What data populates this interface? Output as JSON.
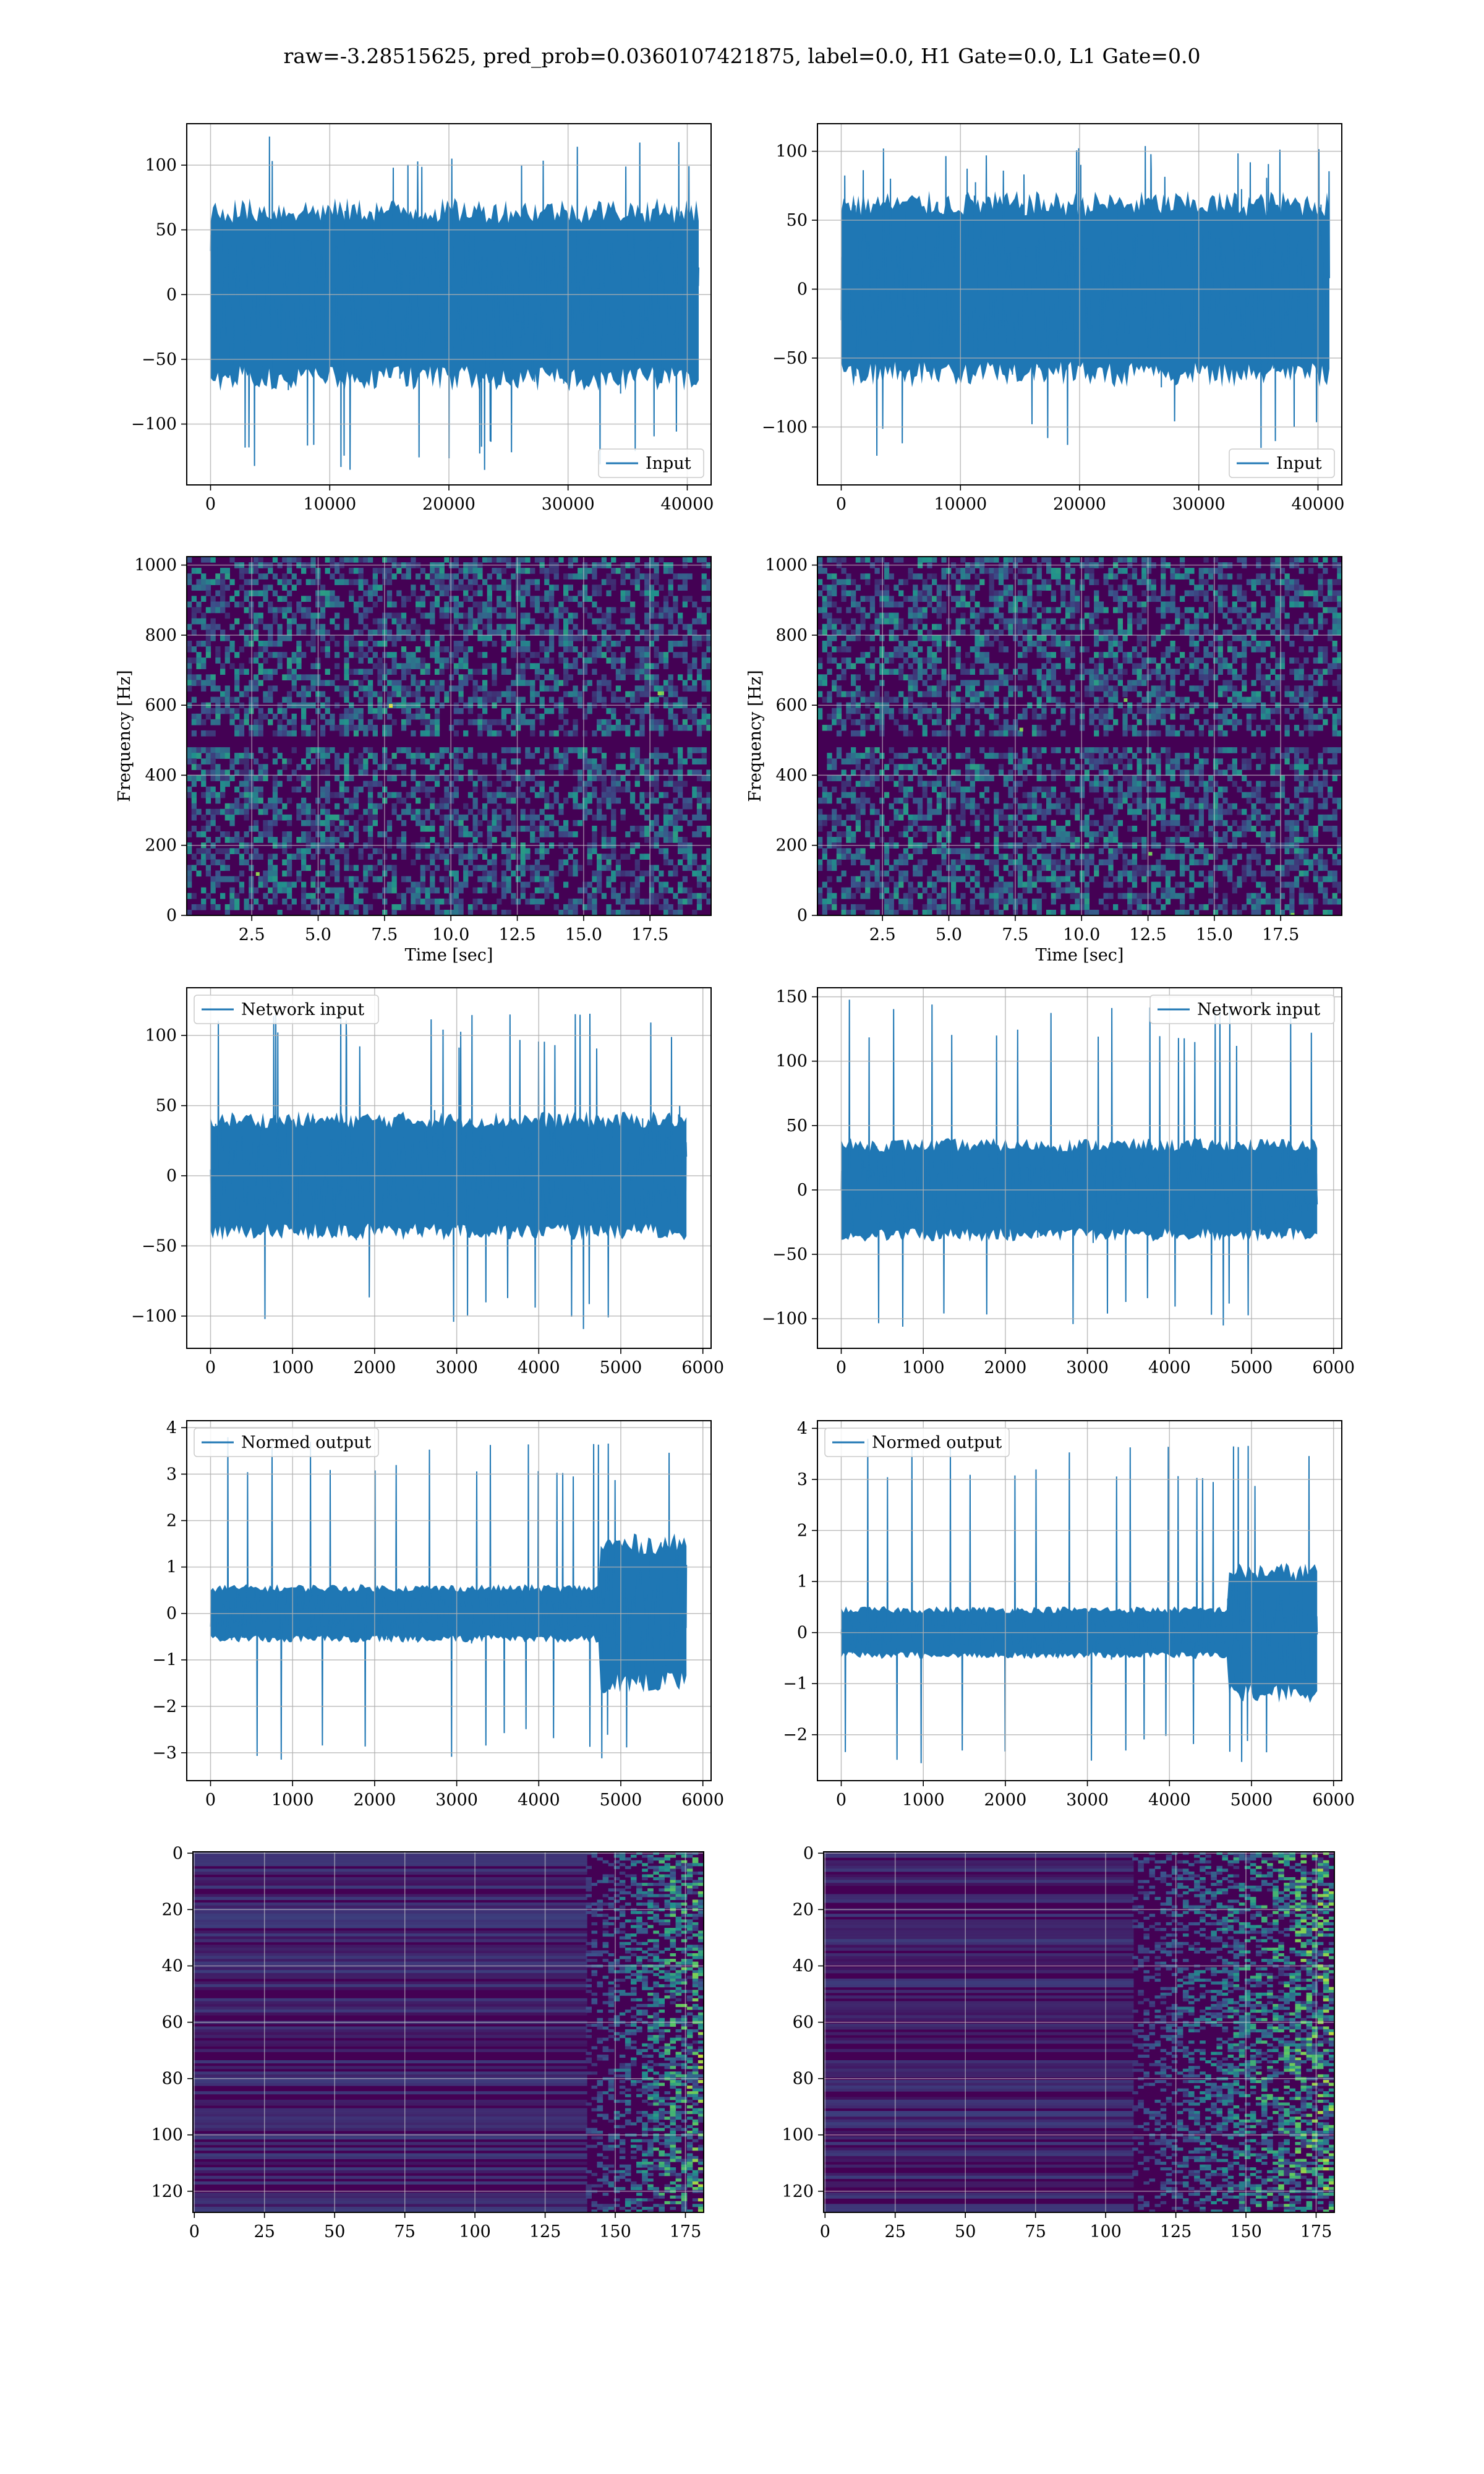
{
  "figure": {
    "title": "raw=-3.28515625, pred_prob=0.0360107421875, label=0.0, H1 Gate=0.0, L1 Gate=0.0"
  },
  "colors": {
    "line": "#1f77b4",
    "grid": "#b0b0b0",
    "heatmap_base": "#440154",
    "heatmap_mid": "#31688e",
    "heatmap_green": "#35b779",
    "heatmap_bright": "#fde725"
  },
  "chart_data": [
    {
      "id": "input-left",
      "type": "line",
      "title": "",
      "series": [
        {
          "name": "Input"
        }
      ],
      "legend": "lower-right",
      "grid": true,
      "xlabel": "",
      "ylabel": "",
      "xlim": [
        -2000,
        42000
      ],
      "ylim": [
        -147,
        132
      ],
      "xticks": [
        0,
        10000,
        20000,
        30000,
        40000
      ],
      "xticklabels": [
        "0",
        "10000",
        "20000",
        "30000",
        "40000"
      ],
      "yticks": [
        -100,
        -50,
        0,
        50,
        100
      ],
      "yticklabels": [
        "−100",
        "−50",
        "0",
        "50",
        "100"
      ],
      "x_range": [
        0,
        40960
      ],
      "core_amplitude": 65,
      "peak_max": 123,
      "peak_min": -136
    },
    {
      "id": "input-right",
      "type": "line",
      "title": "",
      "series": [
        {
          "name": "Input"
        }
      ],
      "legend": "lower-right",
      "grid": true,
      "xlabel": "",
      "ylabel": "",
      "xlim": [
        -2000,
        42000
      ],
      "ylim": [
        -142,
        120
      ],
      "xticks": [
        0,
        10000,
        20000,
        30000,
        40000
      ],
      "xticklabels": [
        "0",
        "10000",
        "20000",
        "30000",
        "40000"
      ],
      "yticks": [
        -100,
        -50,
        0,
        50,
        100
      ],
      "yticklabels": [
        "−100",
        "−50",
        "0",
        "50",
        "100"
      ],
      "x_range": [
        0,
        40960
      ],
      "core_amplitude": 62,
      "peak_max": 106,
      "peak_min": -124
    },
    {
      "id": "spectrogram-left",
      "type": "heatmap",
      "title": "",
      "xlabel": "Time [sec]",
      "ylabel": "Frequency [Hz]",
      "xlim": [
        0.05,
        19.8
      ],
      "ylim": [
        0,
        1024
      ],
      "xticks": [
        2.5,
        5.0,
        7.5,
        10.0,
        12.5,
        15.0,
        17.5
      ],
      "xticklabels": [
        "2.5",
        "5.0",
        "7.5",
        "10.0",
        "12.5",
        "15.0",
        "17.5"
      ],
      "yticks": [
        0,
        200,
        400,
        600,
        800,
        1000
      ],
      "yticklabels": [
        "0",
        "200",
        "400",
        "600",
        "800",
        "1000"
      ],
      "grid": true,
      "colormap": "viridis",
      "dark_band_hz": [
        485,
        520
      ]
    },
    {
      "id": "spectrogram-right",
      "type": "heatmap",
      "title": "",
      "xlabel": "Time [sec]",
      "ylabel": "Frequency [Hz]",
      "xlim": [
        0.05,
        19.8
      ],
      "ylim": [
        0,
        1024
      ],
      "xticks": [
        2.5,
        5.0,
        7.5,
        10.0,
        12.5,
        15.0,
        17.5
      ],
      "xticklabels": [
        "2.5",
        "5.0",
        "7.5",
        "10.0",
        "12.5",
        "15.0",
        "17.5"
      ],
      "yticks": [
        0,
        200,
        400,
        600,
        800,
        1000
      ],
      "yticklabels": [
        "0",
        "200",
        "400",
        "600",
        "800",
        "1000"
      ],
      "grid": true,
      "colormap": "viridis",
      "dark_band_hz": [
        485,
        520
      ]
    },
    {
      "id": "network-input-left",
      "type": "line",
      "title": "",
      "series": [
        {
          "name": "Network input"
        }
      ],
      "legend": "upper-left",
      "grid": true,
      "xlabel": "",
      "ylabel": "",
      "xlim": [
        -290,
        6100
      ],
      "ylim": [
        -123,
        134
      ],
      "xticks": [
        0,
        1000,
        2000,
        3000,
        4000,
        5000,
        6000
      ],
      "xticklabels": [
        "0",
        "1000",
        "2000",
        "3000",
        "4000",
        "5000",
        "6000"
      ],
      "yticks": [
        -100,
        -50,
        0,
        50,
        100
      ],
      "yticklabels": [
        "−100",
        "−50",
        "0",
        "50",
        "100"
      ],
      "x_range": [
        0,
        5800
      ],
      "core_amplitude": 40,
      "peak_max": 120,
      "peak_min": -112
    },
    {
      "id": "network-input-right",
      "type": "line",
      "title": "",
      "series": [
        {
          "name": "Network input"
        }
      ],
      "legend": "upper-right",
      "grid": true,
      "xlabel": "",
      "ylabel": "",
      "xlim": [
        -290,
        6100
      ],
      "ylim": [
        -123,
        157
      ],
      "xticks": [
        0,
        1000,
        2000,
        3000,
        4000,
        5000,
        6000
      ],
      "xticklabels": [
        "0",
        "1000",
        "2000",
        "3000",
        "4000",
        "5000",
        "6000"
      ],
      "yticks": [
        -100,
        -50,
        0,
        50,
        100,
        150
      ],
      "yticklabels": [
        "−100",
        "−50",
        "0",
        "50",
        "100",
        "150"
      ],
      "x_range": [
        0,
        5800
      ],
      "core_amplitude": 35,
      "peak_max": 148,
      "peak_min": -108
    },
    {
      "id": "normed-output-left",
      "type": "line",
      "title": "",
      "series": [
        {
          "name": "Normed output"
        }
      ],
      "legend": "upper-left",
      "grid": true,
      "xlabel": "",
      "ylabel": "",
      "xlim": [
        -290,
        6100
      ],
      "ylim": [
        -3.6,
        4.15
      ],
      "xticks": [
        0,
        1000,
        2000,
        3000,
        4000,
        5000,
        6000
      ],
      "xticklabels": [
        "0",
        "1000",
        "2000",
        "3000",
        "4000",
        "5000",
        "6000"
      ],
      "yticks": [
        -3,
        -2,
        -1,
        0,
        1,
        2,
        3,
        4
      ],
      "yticklabels": [
        "−3",
        "−2",
        "−1",
        "0",
        "1",
        "2",
        "3",
        "4"
      ],
      "x_range": [
        0,
        5800
      ],
      "core_amplitude": 0.55,
      "late_start": 4750,
      "late_amplitude": 1.5,
      "peak_max": 3.8,
      "peak_min": -3.2
    },
    {
      "id": "normed-output-right",
      "type": "line",
      "title": "",
      "series": [
        {
          "name": "Normed output"
        }
      ],
      "legend": "upper-left",
      "grid": true,
      "xlabel": "",
      "ylabel": "",
      "xlim": [
        -290,
        6100
      ],
      "ylim": [
        -2.9,
        4.15
      ],
      "xticks": [
        0,
        1000,
        2000,
        3000,
        4000,
        5000,
        6000
      ],
      "xticklabels": [
        "0",
        "1000",
        "2000",
        "3000",
        "4000",
        "5000",
        "6000"
      ],
      "yticks": [
        -2,
        -1,
        0,
        1,
        2,
        3,
        4
      ],
      "yticklabels": [
        "−2",
        "−1",
        "0",
        "1",
        "2",
        "3",
        "4"
      ],
      "x_range": [
        0,
        5800
      ],
      "core_amplitude": 0.45,
      "late_start": 4700,
      "late_amplitude": 1.2,
      "peak_max": 3.8,
      "peak_min": -2.6
    },
    {
      "id": "feature-map-left",
      "type": "heatmap",
      "title": "",
      "xlabel": "",
      "ylabel": "",
      "xlim": [
        -0.5,
        181.5
      ],
      "ylim": [
        127.5,
        -0.5
      ],
      "xticks": [
        0,
        25,
        50,
        75,
        100,
        125,
        150,
        175
      ],
      "xticklabels": [
        "0",
        "25",
        "50",
        "75",
        "100",
        "125",
        "150",
        "175"
      ],
      "yticks": [
        0,
        20,
        40,
        60,
        80,
        100,
        120
      ],
      "yticklabels": [
        "0",
        "20",
        "40",
        "60",
        "80",
        "100",
        "120"
      ],
      "grid": true,
      "colormap": "viridis",
      "rows": 128,
      "cols": 182,
      "active_from_col": 140
    },
    {
      "id": "feature-map-right",
      "type": "heatmap",
      "title": "",
      "xlabel": "",
      "ylabel": "",
      "xlim": [
        -0.5,
        181.5
      ],
      "ylim": [
        127.5,
        -0.5
      ],
      "xticks": [
        0,
        25,
        50,
        75,
        100,
        125,
        150,
        175
      ],
      "xticklabels": [
        "0",
        "25",
        "50",
        "75",
        "100",
        "125",
        "150",
        "175"
      ],
      "yticks": [
        0,
        20,
        40,
        60,
        80,
        100,
        120
      ],
      "yticklabels": [
        "0",
        "20",
        "40",
        "60",
        "80",
        "100",
        "120"
      ],
      "grid": true,
      "colormap": "viridis",
      "rows": 128,
      "cols": 182,
      "active_from_col": 110
    }
  ]
}
